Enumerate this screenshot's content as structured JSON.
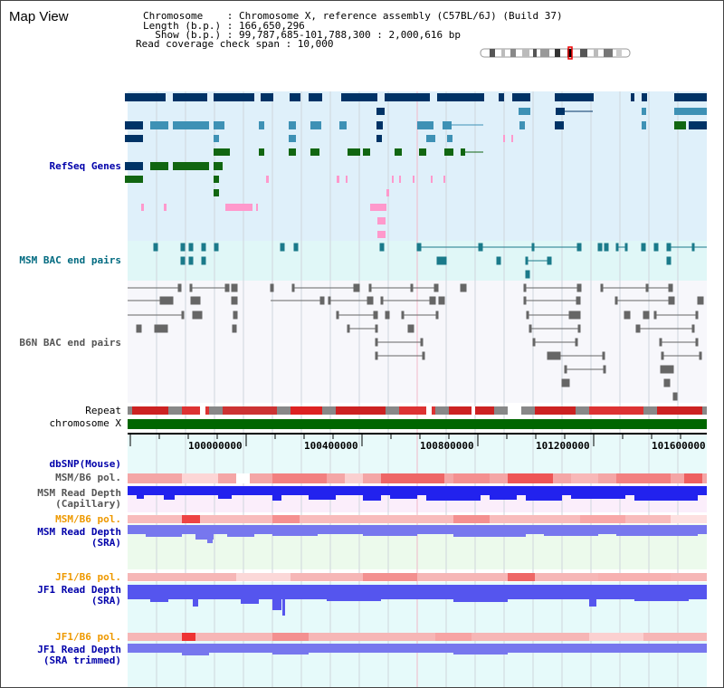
{
  "page": {
    "title": "Map View"
  },
  "info": {
    "chrom_line": "Chromosome    : Chromosome X, reference assembly (C57BL/6J) (Build 37)",
    "length_line": "Length (b.p.) : 166,650,296",
    "show_line": "  Show (b.p.) : 99,787,685-101,788,300 : 2,000,616 bp",
    "coverage_line": "Read coverage check span : 10,000"
  },
  "tracks": {
    "refseq": "RefSeq Genes",
    "msm_bac": "MSM BAC end pairs",
    "b6n_bac": "B6N BAC end pairs",
    "repeat": "Repeat",
    "chromosome": "chromosome X",
    "dbsnp": "dbSNP(Mouse)",
    "msm_b6_pol": "MSM/B6 pol.",
    "msm_depth_cap_1": "MSM Read Depth",
    "msm_depth_cap_2": "(Capillary)",
    "msm_b6_pol_2": "MSM/B6 pol.",
    "msm_depth_sra_1": "MSM Read Depth",
    "msm_depth_sra_2": "(SRA)",
    "jf1_b6_pol": "JF1/B6 pol.",
    "jf1_depth_sra_1": "JF1 Read Depth",
    "jf1_depth_sra_2": "(SRA)",
    "jf1_b6_pol_2": "JF1/B6 pol.",
    "jf1_depth_trim_1": "JF1 Read Depth",
    "jf1_depth_trim_2": "(SRA trimmed)"
  },
  "ruler": {
    "ticks": [
      "100000000",
      "100400000",
      "100800000",
      "101200000",
      "101600000"
    ]
  },
  "colors": {
    "refseq_bg": "#dff0fa",
    "msm_bg": "#e0f7f7",
    "b6n_bg": "#f7f7fb",
    "gene_dark": "#003366",
    "gene_mid": "#3e91b5",
    "gene_green": "#116611",
    "gene_pink": "#ff99cc",
    "msm_bac": "#1a7a8a",
    "b6n_bac": "#666666",
    "chrom": "#006600",
    "depth_blue": "#2222ee",
    "depth_soft": "#7777ee"
  }
}
